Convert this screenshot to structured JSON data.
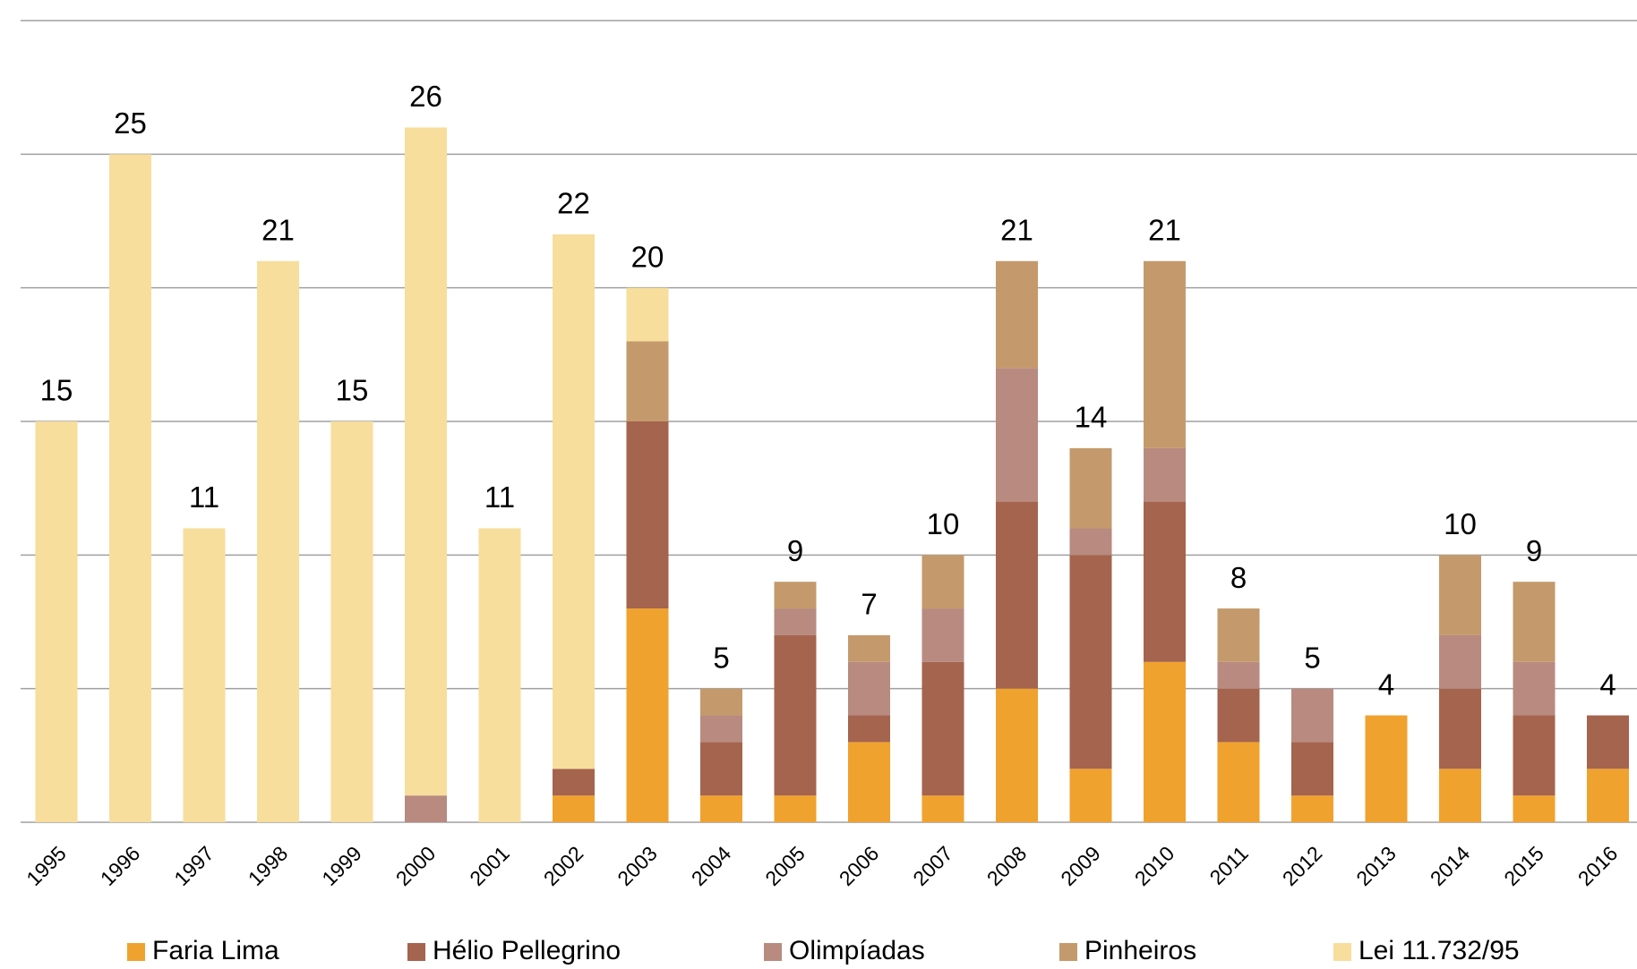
{
  "chart_data": {
    "type": "stacked_bar",
    "categories": [
      "1995",
      "1996",
      "1997",
      "1998",
      "1999",
      "2000",
      "2001",
      "2002",
      "2003",
      "2004",
      "2005",
      "2006",
      "2007",
      "2008",
      "2009",
      "2010",
      "2011",
      "2012",
      "2013",
      "2014",
      "2015",
      "2016"
    ],
    "series": [
      {
        "name": "Faria Lima",
        "color": "#f0a22e",
        "values": [
          0,
          0,
          0,
          0,
          0,
          0,
          0,
          1,
          8,
          1,
          1,
          3,
          1,
          5,
          2,
          6,
          3,
          1,
          4,
          2,
          1,
          2
        ]
      },
      {
        "name": "Hélio Pellegrino",
        "color": "#a5644e",
        "values": [
          0,
          0,
          0,
          0,
          0,
          0,
          0,
          1,
          7,
          2,
          6,
          1,
          5,
          7,
          8,
          6,
          2,
          2,
          0,
          3,
          3,
          2
        ]
      },
      {
        "name": "Olimpíadas",
        "color": "#b88a80",
        "values": [
          0,
          0,
          0,
          0,
          0,
          1,
          0,
          0,
          0,
          1,
          1,
          2,
          2,
          5,
          1,
          2,
          1,
          2,
          0,
          2,
          2,
          0
        ]
      },
      {
        "name": "Pinheiros",
        "color": "#c49a6c",
        "values": [
          0,
          0,
          0,
          0,
          0,
          0,
          0,
          0,
          3,
          1,
          1,
          1,
          2,
          4,
          3,
          7,
          2,
          0,
          0,
          3,
          3,
          0
        ]
      },
      {
        "name": "Lei 11.732/95",
        "color": "#f7de9c",
        "values": [
          15,
          25,
          11,
          21,
          15,
          25,
          11,
          20,
          2,
          0,
          0,
          0,
          0,
          0,
          0,
          0,
          0,
          0,
          0,
          0,
          0,
          0
        ]
      }
    ],
    "totals": [
      15,
      25,
      11,
      21,
      15,
      26,
      11,
      22,
      20,
      5,
      9,
      7,
      10,
      21,
      14,
      21,
      8,
      5,
      4,
      10,
      9,
      4
    ],
    "ylim": [
      0,
      30
    ],
    "yticks": [
      0,
      5,
      10,
      15,
      20,
      25,
      30
    ],
    "grid": true,
    "legend": "bottom"
  }
}
